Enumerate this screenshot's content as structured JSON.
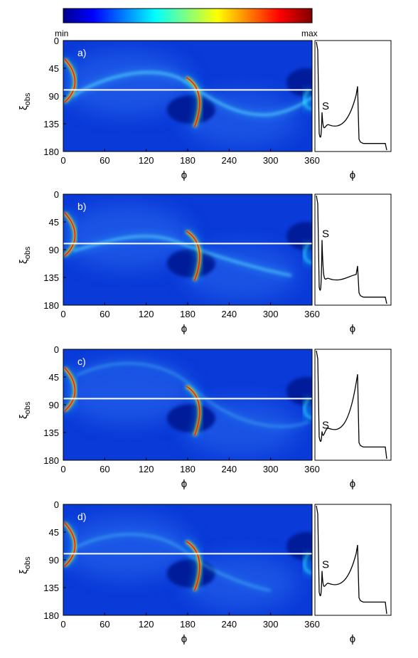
{
  "colorbar": {
    "min_label": "min",
    "max_label": "max",
    "colormap": "jet",
    "colors": [
      "#00008f",
      "#0000ff",
      "#00ffff",
      "#ffff00",
      "#ff0000",
      "#800000"
    ]
  },
  "chart_data": [
    {
      "type": "heatmap",
      "panel_label": "a)",
      "xlabel": "ϕ",
      "ylabel": "ξobs",
      "ylabel_main": "ξ",
      "ylabel_sub": "obs",
      "xlim": [
        0,
        360
      ],
      "ylim": [
        180,
        0
      ],
      "xticks": [
        0,
        60,
        120,
        180,
        240,
        300,
        360
      ],
      "yticks": [
        0,
        45,
        90,
        135,
        180
      ],
      "cut_line_y": 80,
      "profile": {
        "xlabel": "ϕ",
        "annotation": "S",
        "peak_levels": [
          0.95,
          0.35,
          0.6
        ],
        "baseline": 0.05
      }
    },
    {
      "type": "heatmap",
      "panel_label": "b)",
      "xlabel": "ϕ",
      "ylabel": "ξobs",
      "ylabel_main": "ξ",
      "ylabel_sub": "obs",
      "xlim": [
        0,
        360
      ],
      "ylim": [
        180,
        0
      ],
      "xticks": [
        0,
        60,
        120,
        180,
        240,
        300,
        360
      ],
      "yticks": [
        0,
        45,
        90,
        135,
        180
      ],
      "cut_line_y": 80,
      "profile": {
        "xlabel": "ϕ",
        "annotation": "S",
        "peak_levels": [
          0.95,
          0.6,
          0.35
        ],
        "baseline": 0.05
      }
    },
    {
      "type": "heatmap",
      "panel_label": "c)",
      "xlabel": "ϕ",
      "ylabel": "ξobs",
      "ylabel_main": "ξ",
      "ylabel_sub": "obs",
      "xlim": [
        0,
        360
      ],
      "ylim": [
        180,
        0
      ],
      "xticks": [
        0,
        60,
        120,
        180,
        240,
        300,
        360
      ],
      "yticks": [
        0,
        45,
        90,
        135,
        180
      ],
      "cut_line_y": 80,
      "profile": {
        "xlabel": "ϕ",
        "annotation": "S",
        "peak_levels": [
          0.95,
          0.25,
          0.8
        ],
        "baseline": 0.1
      }
    },
    {
      "type": "heatmap",
      "panel_label": "d)",
      "xlabel": "ϕ",
      "ylabel": "ξobs",
      "ylabel_main": "ξ",
      "ylabel_sub": "obs",
      "xlim": [
        0,
        360
      ],
      "ylim": [
        180,
        0
      ],
      "xticks": [
        0,
        60,
        120,
        180,
        240,
        300,
        360
      ],
      "yticks": [
        0,
        45,
        90,
        135,
        180
      ],
      "cut_line_y": 80,
      "profile": {
        "xlabel": "ϕ",
        "annotation": "S",
        "peak_levels": [
          0.95,
          0.4,
          0.65
        ],
        "baseline": 0.1
      }
    }
  ]
}
